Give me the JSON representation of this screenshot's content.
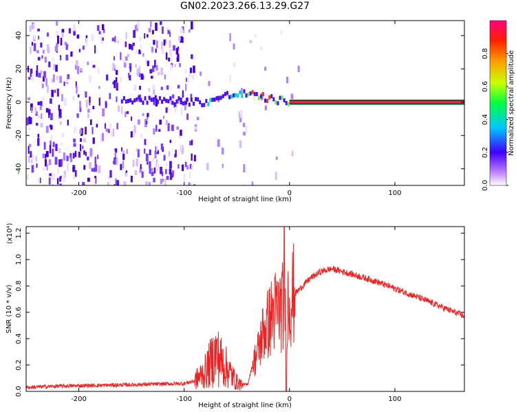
{
  "title": "GN02.2023.266.13.29.G27",
  "chart_data": [
    {
      "type": "heatmap",
      "xlabel": "Height of straight line (km)",
      "ylabel": "Frequency (Hz)",
      "xlim": [
        -250,
        166
      ],
      "ylim": [
        -50,
        49
      ],
      "xticks": [
        "-200",
        "-100",
        "0",
        "100"
      ],
      "yticks": [
        "-40",
        "-20",
        "0",
        "20",
        "40"
      ],
      "colorbar": {
        "label": "Normalized spectral amplitude",
        "range": [
          0,
          1
        ],
        "ticks": [
          "0.0",
          "0.2",
          "0.4",
          "0.6",
          "0.8"
        ]
      },
      "signal_track": [
        {
          "x": -160,
          "y": 2
        },
        {
          "x": -120,
          "y": 1
        },
        {
          "x": -80,
          "y": 0
        },
        {
          "x": -60,
          "y": 4
        },
        {
          "x": -40,
          "y": 5
        },
        {
          "x": -20,
          "y": 2
        },
        {
          "x": 0,
          "y": 0
        },
        {
          "x": 166,
          "y": 0
        }
      ],
      "grid": false
    },
    {
      "type": "line",
      "xlabel": "Height of straight line (km)",
      "ylabel": "SNR (10 * v/v)",
      "yscale_note": "(x10⁴)",
      "xlim": [
        -250,
        166
      ],
      "ylim": [
        0,
        1.25
      ],
      "xticks": [
        "-200",
        "-100",
        "0",
        "100"
      ],
      "yticks": [
        "0.0",
        "0.2",
        "0.4",
        "0.6",
        "0.8",
        "1.0",
        "1.2"
      ],
      "series": [
        {
          "color": "#ee2222",
          "x": [
            -250,
            -220,
            -150,
            -100,
            -90,
            -80,
            -70,
            -60,
            -50,
            -45,
            -40,
            -35,
            -30,
            -25,
            -20,
            -15,
            -10,
            -5,
            0,
            10,
            20,
            30,
            40,
            50,
            80,
            120,
            166
          ],
          "y": [
            0.03,
            0.04,
            0.05,
            0.06,
            0.08,
            0.15,
            0.28,
            0.18,
            0.07,
            0.05,
            0.05,
            0.2,
            0.3,
            0.45,
            0.52,
            0.6,
            0.62,
            0.65,
            0.7,
            0.78,
            0.86,
            0.91,
            0.93,
            0.91,
            0.84,
            0.72,
            0.57
          ]
        }
      ],
      "grid": false
    }
  ]
}
